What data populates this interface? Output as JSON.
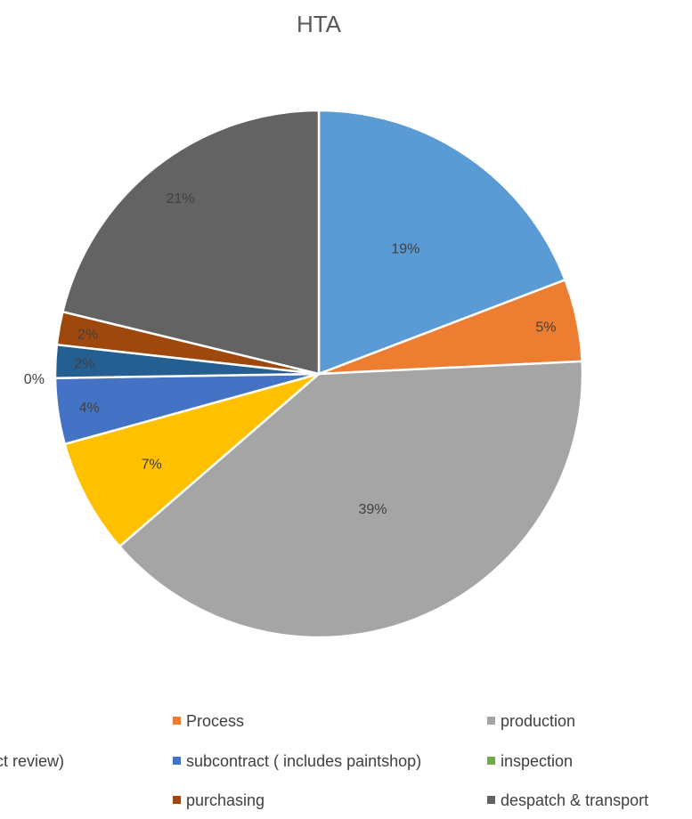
{
  "chart_data": {
    "type": "pie",
    "title": "HTA",
    "slices": [
      {
        "label": "",
        "value": 19,
        "display": "19%",
        "color": "#5B9BD5"
      },
      {
        "label": "Process",
        "value": 5,
        "display": "5%",
        "color": "#ED7D31"
      },
      {
        "label": "production",
        "value": 39,
        "display": "39%",
        "color": "#A5A5A5"
      },
      {
        "label": "",
        "value": 7,
        "display": "7%",
        "color": "#FFC000"
      },
      {
        "label": "subcontract ( includes paintshop)",
        "value": 4,
        "display": "4%",
        "color": "#4472C4"
      },
      {
        "label": "inspection",
        "value": 0,
        "display": "0%",
        "color": "#70AD47"
      },
      {
        "label": "",
        "value": 2,
        "display": "2%",
        "color": "#255E91"
      },
      {
        "label": "purchasing",
        "value": 2,
        "display": "2%",
        "color": "#9E480E"
      },
      {
        "label": "despatch & transport",
        "value": 21,
        "display": "21%",
        "color": "#636363"
      }
    ],
    "legend": {
      "placement": "bottom",
      "items": [
        {
          "label": "Process",
          "color": "#ED7D31"
        },
        {
          "label": "production",
          "color": "#A5A5A5"
        },
        {
          "label": "ct review)",
          "color": "#FFC000",
          "marker": false
        },
        {
          "label": "subcontract ( includes paintshop)",
          "color": "#4472C4"
        },
        {
          "label": "inspection",
          "color": "#70AD47"
        },
        {
          "label": "purchasing",
          "color": "#9E480E"
        },
        {
          "label": "despatch & transport",
          "color": "#636363"
        }
      ]
    }
  }
}
